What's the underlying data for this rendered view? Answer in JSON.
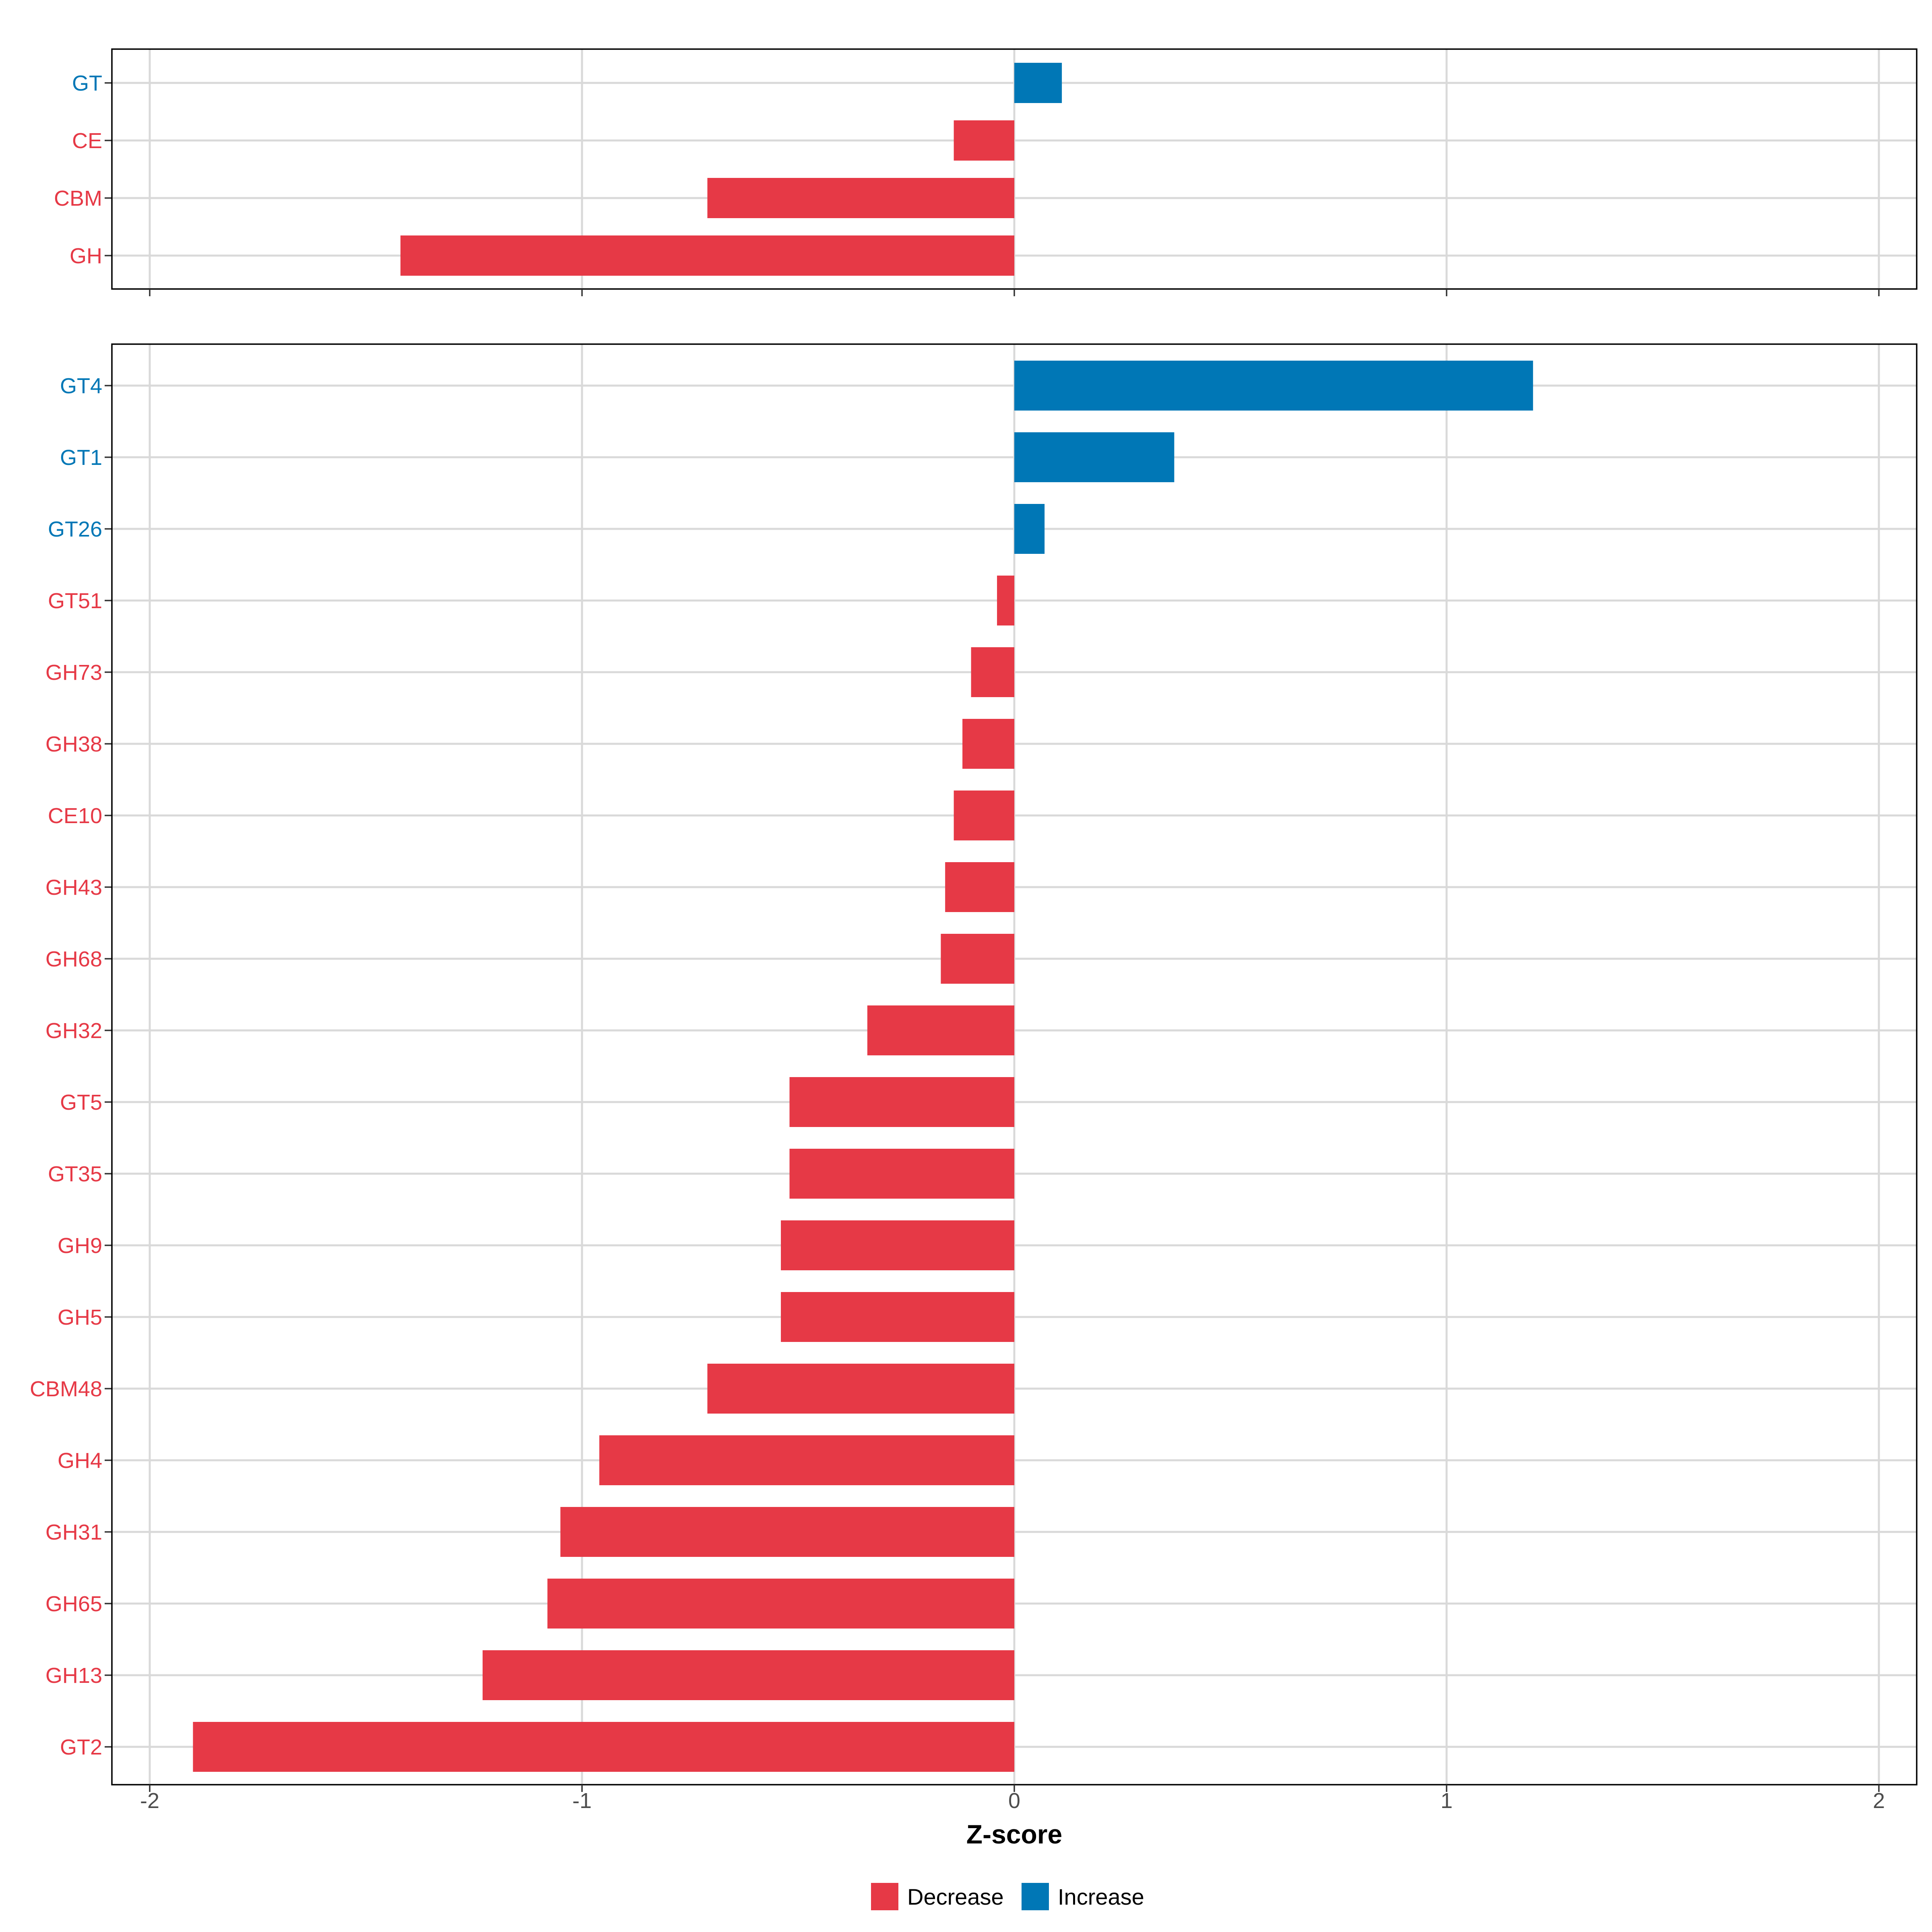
{
  "chart_data": {
    "type": "bar",
    "orientation": "horizontal",
    "xlabel": "Z-score",
    "xlim": [
      -2.0,
      2.0
    ],
    "x_ticks": [
      -2,
      -1,
      0,
      1,
      2
    ],
    "x_tick_labels": [
      "-2",
      "-1",
      "0",
      "1",
      "2"
    ],
    "grid": true,
    "colors": {
      "Decrease": "#e63946",
      "Increase": "#0077b6"
    },
    "legend": {
      "position": "bottom",
      "entries": [
        {
          "label": "Decrease",
          "color": "#e63946"
        },
        {
          "label": "Increase",
          "color": "#0077b6"
        }
      ]
    },
    "panels": [
      {
        "name": "families",
        "categories": [
          "GT",
          "CE",
          "CBM",
          "GH"
        ],
        "values": [
          0.11,
          -0.14,
          -0.71,
          -1.42
        ],
        "groups": [
          "Increase",
          "Decrease",
          "Decrease",
          "Decrease"
        ]
      },
      {
        "name": "subfamilies",
        "categories": [
          "GT4",
          "GT1",
          "GT26",
          "GT51",
          "GH73",
          "GH38",
          "CE10",
          "GH43",
          "GH68",
          "GH32",
          "GT5",
          "GT35",
          "GH9",
          "GH5",
          "CBM48",
          "GH4",
          "GH31",
          "GH65",
          "GH13",
          "GT2"
        ],
        "values": [
          1.2,
          0.37,
          0.07,
          -0.04,
          -0.1,
          -0.12,
          -0.14,
          -0.16,
          -0.17,
          -0.34,
          -0.52,
          -0.52,
          -0.54,
          -0.54,
          -0.71,
          -0.96,
          -1.05,
          -1.08,
          -1.23,
          -1.9
        ],
        "groups": [
          "Increase",
          "Increase",
          "Increase",
          "Decrease",
          "Decrease",
          "Decrease",
          "Decrease",
          "Decrease",
          "Decrease",
          "Decrease",
          "Decrease",
          "Decrease",
          "Decrease",
          "Decrease",
          "Decrease",
          "Decrease",
          "Decrease",
          "Decrease",
          "Decrease",
          "Decrease"
        ]
      }
    ]
  }
}
